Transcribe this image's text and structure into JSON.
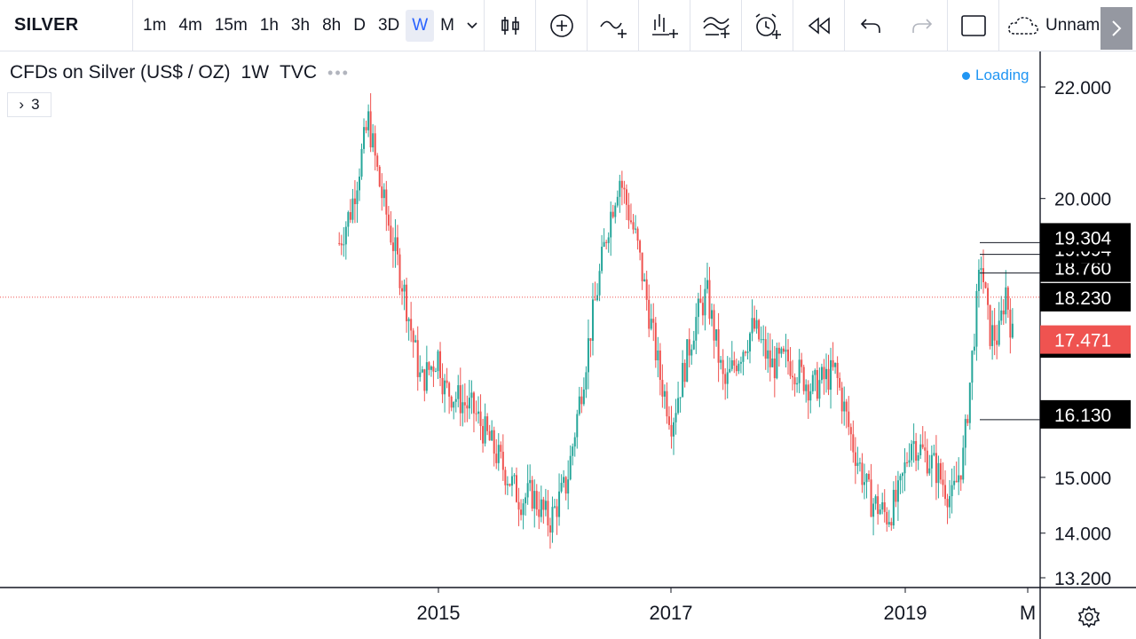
{
  "toolbar": {
    "symbol": "SILVER",
    "intervals": [
      "1m",
      "4m",
      "15m",
      "1h",
      "3h",
      "8h",
      "D",
      "3D",
      "W",
      "M"
    ],
    "active_interval": "W",
    "layout_name": "Unnam",
    "icons": [
      "chevron-down-icon",
      "bar-style-icon",
      "add-indicator-icon",
      "compare-icon",
      "indicators-icon",
      "templates-icon",
      "alert-icon",
      "replay-icon",
      "undo-icon",
      "redo-icon",
      "fullscreen-icon",
      "cloud-icon",
      "chevron-right-icon"
    ]
  },
  "legend": {
    "title": "CFDs on Silver (US$ / OZ)",
    "interval": "1W",
    "source": "TVC",
    "collapsed_count": "3"
  },
  "status": {
    "loading": "Loading"
  },
  "chart_data": {
    "type": "candlestick",
    "x_ticks": [
      "2015",
      "2017",
      "2019",
      "M"
    ],
    "y_ticks": [
      13.2,
      14.0,
      15.0,
      16.13,
      17.4,
      18.23,
      18.76,
      19.094,
      19.304,
      20.0,
      22.0
    ],
    "y_tick_labels": [
      "13.200",
      "14.000",
      "15.000",
      "16.130",
      "17.400",
      "18.230",
      "18.760",
      "19.094",
      "19.304",
      "20.000",
      "22.000"
    ],
    "ylim": [
      13.2,
      22.0
    ],
    "last_price": 17.471,
    "last_price_label": "17.471",
    "price_line": 18.23,
    "highlighted_levels": [
      19.304,
      19.094,
      18.76,
      18.23,
      17.4,
      16.13
    ],
    "colors": {
      "up": "#26a69a",
      "down": "#ef5350",
      "last_price_bg": "#ef5350"
    },
    "series": [
      {
        "key_points": [
          [
            2014.15,
            19.2
          ],
          [
            2014.25,
            19.8
          ],
          [
            2014.4,
            21.4
          ],
          [
            2014.5,
            20.2
          ],
          [
            2014.7,
            18.4
          ],
          [
            2014.85,
            16.7
          ],
          [
            2015.0,
            17.2
          ],
          [
            2015.05,
            16.6
          ],
          [
            2015.3,
            16.2
          ],
          [
            2015.55,
            15.2
          ],
          [
            2015.7,
            14.6
          ],
          [
            2015.8,
            14.7
          ],
          [
            2015.95,
            14.2
          ],
          [
            2016.1,
            14.9
          ],
          [
            2016.3,
            17.6
          ],
          [
            2016.45,
            19.5
          ],
          [
            2016.55,
            20.4
          ],
          [
            2016.7,
            19.2
          ],
          [
            2016.9,
            16.8
          ],
          [
            2017.0,
            16.0
          ],
          [
            2017.2,
            17.8
          ],
          [
            2017.3,
            18.3
          ],
          [
            2017.45,
            16.6
          ],
          [
            2017.55,
            17.1
          ],
          [
            2017.7,
            17.7
          ],
          [
            2017.85,
            17.0
          ],
          [
            2018.0,
            17.1
          ],
          [
            2018.2,
            16.6
          ],
          [
            2018.4,
            16.9
          ],
          [
            2018.55,
            15.6
          ],
          [
            2018.7,
            14.6
          ],
          [
            2018.85,
            14.3
          ],
          [
            2018.95,
            14.7
          ],
          [
            2019.05,
            15.7
          ],
          [
            2019.25,
            15.2
          ],
          [
            2019.4,
            14.6
          ],
          [
            2019.5,
            15.4
          ],
          [
            2019.6,
            17.8
          ],
          [
            2019.65,
            18.9
          ],
          [
            2019.72,
            17.6
          ],
          [
            2019.8,
            17.5
          ],
          [
            2019.86,
            18.4
          ],
          [
            2019.92,
            17.5
          ]
        ]
      }
    ]
  }
}
